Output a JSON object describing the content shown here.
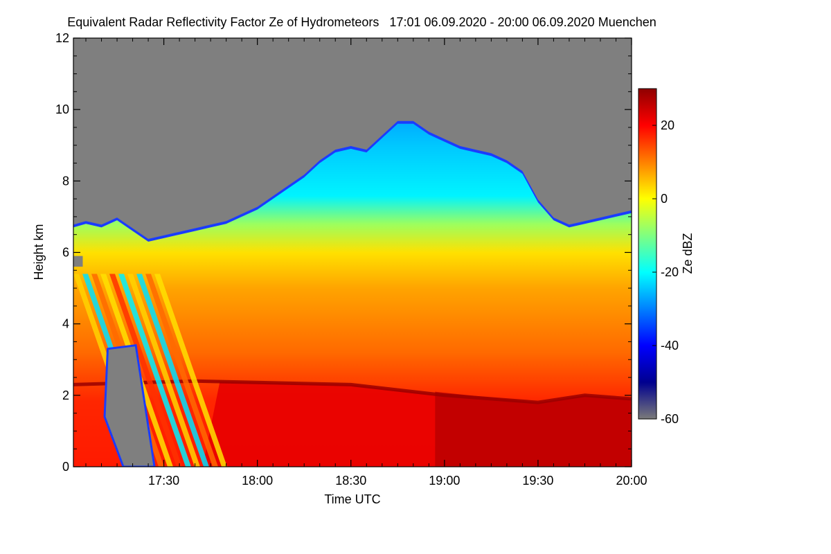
{
  "chart_data": {
    "type": "heatmap",
    "title": "Equivalent Radar Reflectivity Factor Ze of Hydrometeors",
    "time_range_label": "17:01 06.09.2020 - 20:00 06.09.2020",
    "location": "Muenchen",
    "xlabel": "Time UTC",
    "ylabel": "Height km",
    "x_start": "17:01",
    "x_end": "20:00",
    "x_ticks": [
      "17:30",
      "18:00",
      "18:30",
      "19:00",
      "19:30",
      "20:00"
    ],
    "y_ticks": [
      0,
      2,
      4,
      6,
      8,
      10,
      12
    ],
    "ylim": [
      0,
      12
    ],
    "colorbar": {
      "label": "Ze dBZ",
      "range": [
        -60,
        30
      ],
      "ticks": [
        -60,
        -40,
        -20,
        0,
        20
      ]
    },
    "colors": {
      "no_signal": "#7f7f7f",
      "colormap": [
        "#7a7a7a",
        "#00008f",
        "#0000ff",
        "#0080ff",
        "#00ffff",
        "#80ff80",
        "#ffff00",
        "#ff8000",
        "#ff0000",
        "#8f0000"
      ]
    },
    "echo_top_km": [
      {
        "time": "17:01",
        "top": 6.7
      },
      {
        "time": "17:05",
        "top": 6.8
      },
      {
        "time": "17:10",
        "top": 6.7
      },
      {
        "time": "17:15",
        "top": 6.9
      },
      {
        "time": "17:20",
        "top": 6.6
      },
      {
        "time": "17:25",
        "top": 6.3
      },
      {
        "time": "17:30",
        "top": 6.4
      },
      {
        "time": "17:35",
        "top": 6.5
      },
      {
        "time": "17:40",
        "top": 6.6
      },
      {
        "time": "17:45",
        "top": 6.7
      },
      {
        "time": "17:50",
        "top": 6.8
      },
      {
        "time": "17:55",
        "top": 7.0
      },
      {
        "time": "18:00",
        "top": 7.2
      },
      {
        "time": "18:05",
        "top": 7.5
      },
      {
        "time": "18:10",
        "top": 7.8
      },
      {
        "time": "18:15",
        "top": 8.1
      },
      {
        "time": "18:20",
        "top": 8.5
      },
      {
        "time": "18:25",
        "top": 8.8
      },
      {
        "time": "18:30",
        "top": 8.9
      },
      {
        "time": "18:35",
        "top": 8.8
      },
      {
        "time": "18:40",
        "top": 9.2
      },
      {
        "time": "18:45",
        "top": 9.6
      },
      {
        "time": "18:50",
        "top": 9.6
      },
      {
        "time": "18:55",
        "top": 9.3
      },
      {
        "time": "19:00",
        "top": 9.1
      },
      {
        "time": "19:05",
        "top": 8.9
      },
      {
        "time": "19:10",
        "top": 8.8
      },
      {
        "time": "19:15",
        "top": 8.7
      },
      {
        "time": "19:20",
        "top": 8.5
      },
      {
        "time": "19:25",
        "top": 8.2
      },
      {
        "time": "19:30",
        "top": 7.4
      },
      {
        "time": "19:35",
        "top": 6.9
      },
      {
        "time": "19:40",
        "top": 6.7
      },
      {
        "time": "19:45",
        "top": 6.8
      },
      {
        "time": "19:50",
        "top": 6.9
      },
      {
        "time": "19:55",
        "top": 7.0
      },
      {
        "time": "20:00",
        "top": 7.1
      }
    ],
    "melting_layer_km": [
      {
        "time": "17:01",
        "height": 2.3
      },
      {
        "time": "17:40",
        "height": 2.4
      },
      {
        "time": "18:30",
        "height": 2.3
      },
      {
        "time": "19:00",
        "height": 2.0
      },
      {
        "time": "19:30",
        "height": 1.8
      },
      {
        "time": "19:45",
        "height": 2.0
      },
      {
        "time": "20:00",
        "height": 1.9
      }
    ]
  }
}
